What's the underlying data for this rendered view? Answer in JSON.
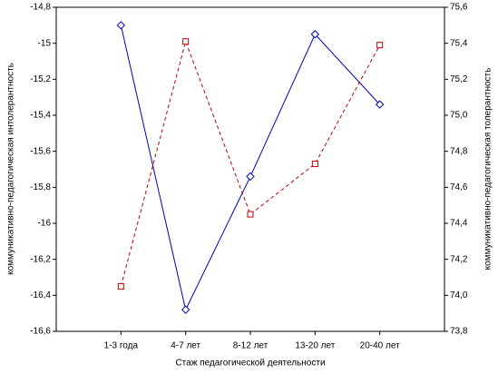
{
  "chart_data": {
    "type": "line",
    "x_label": "Стаж педагогической деятельности",
    "y_label": "коммуникативно-педагогическая интолерантность",
    "y2_label": "коммуникативно-педагогическая толерантность",
    "categories": [
      "1-3 года",
      "4-7 лет",
      "8-12 лет",
      "13-20 лет",
      "20-40 лет"
    ],
    "series": [
      {
        "color": "#0000c0",
        "line_style": "solid",
        "marker": "diamond",
        "values": [
          -14.9,
          -16.48,
          -15.74,
          -14.95,
          -15.34
        ]
      },
      {
        "color": "#c00000",
        "line_style": "dashed",
        "marker": "square",
        "axis": "y2",
        "values": [
          74.05,
          75.41,
          74.45,
          74.73,
          75.39
        ]
      }
    ],
    "ylim": [
      -16.6,
      -14.8
    ],
    "yticks": [
      {
        "value": -14.8,
        "label": "-14,8"
      },
      -15,
      {
        "value": -15.2,
        "label": "-15,2"
      },
      {
        "value": -15.4,
        "label": "-15,4"
      },
      {
        "value": -15.6,
        "label": "-15,6"
      },
      {
        "value": -15.8,
        "label": "-15,8"
      },
      -16,
      {
        "value": -16.2,
        "label": "-16,2"
      },
      {
        "value": -16.4,
        "label": "-16,4"
      },
      {
        "value": -16.6,
        "label": "-16,6"
      }
    ],
    "y2lim": [
      73.8,
      75.6
    ],
    "y2ticks": [
      {
        "value": 75.6,
        "label": "75,6"
      },
      {
        "value": 75.4,
        "label": "75,4"
      },
      {
        "value": 75.2,
        "label": "75,2"
      },
      {
        "value": 75.0,
        "label": "75,0"
      },
      {
        "value": 74.8,
        "label": "74,8"
      },
      {
        "value": 74.6,
        "label": "74,6"
      },
      {
        "value": 74.4,
        "label": "74,4"
      },
      {
        "value": 74.2,
        "label": "74,2"
      },
      {
        "value": 74.0,
        "label": "74,0"
      },
      {
        "value": 73.8,
        "label": "73,8"
      }
    ],
    "grid": false
  }
}
